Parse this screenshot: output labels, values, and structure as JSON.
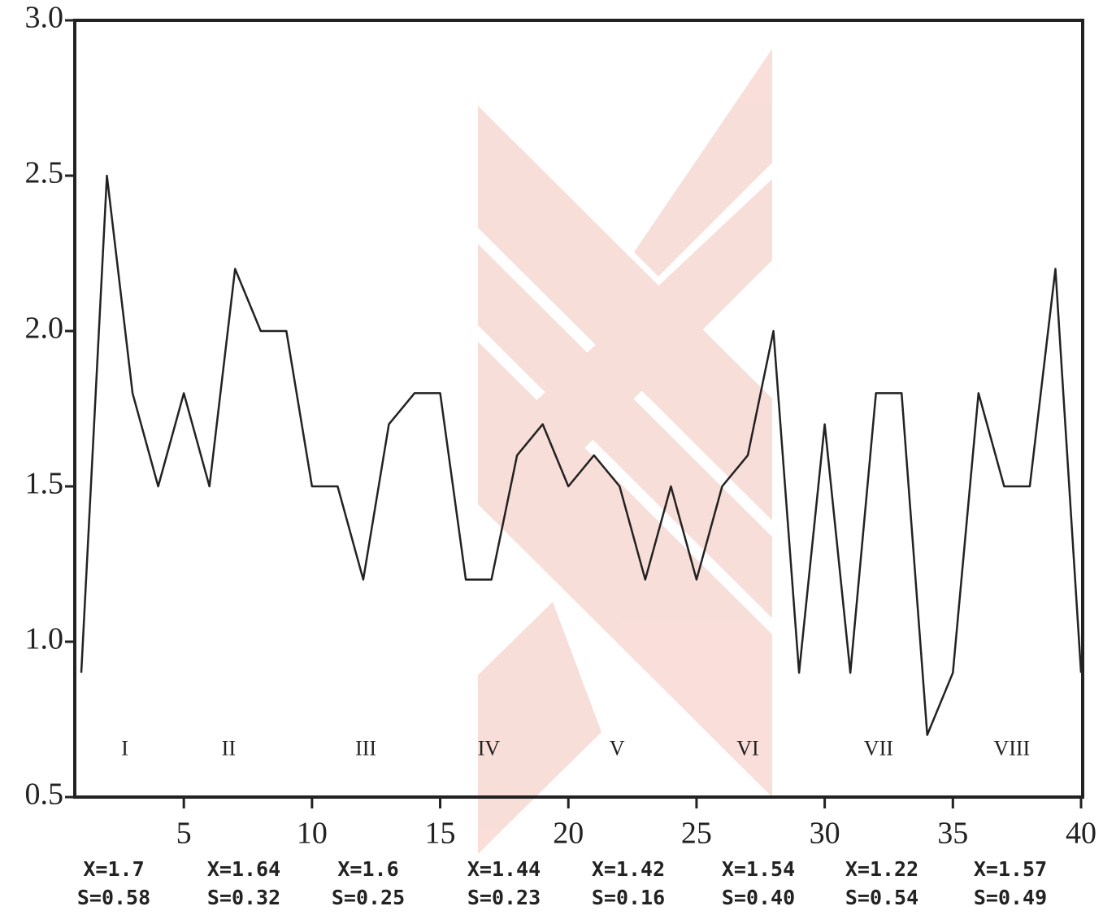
{
  "chart_data": {
    "type": "line",
    "x": [
      1,
      2,
      3,
      4,
      5,
      6,
      7,
      8,
      9,
      10,
      11,
      12,
      13,
      14,
      15,
      16,
      17,
      18,
      19,
      20,
      21,
      22,
      23,
      24,
      25,
      26,
      27,
      28,
      29,
      30,
      31,
      32,
      33,
      34,
      35,
      36,
      37,
      38,
      39,
      40
    ],
    "values": [
      0.9,
      2.5,
      1.8,
      1.5,
      1.8,
      1.5,
      2.2,
      2.0,
      2.0,
      1.5,
      1.5,
      1.2,
      1.7,
      1.8,
      1.8,
      1.2,
      1.2,
      1.6,
      1.7,
      1.5,
      1.6,
      1.5,
      1.2,
      1.5,
      1.2,
      1.5,
      1.6,
      2.0,
      0.9,
      1.7,
      0.9,
      1.8,
      1.8,
      0.7,
      0.9,
      1.8,
      1.5,
      1.5,
      2.2,
      0.9
    ],
    "color": "#222222",
    "xlim": [
      1,
      40
    ],
    "ylim": [
      0.5,
      3.0
    ],
    "xticks": [
      5,
      10,
      15,
      20,
      25,
      30,
      35,
      40
    ],
    "yticks": [
      0.5,
      {
        "value": 1.0,
        "label": "1.0"
      },
      1.5,
      {
        "value": 2.0,
        "label": "2.0"
      },
      2.5,
      {
        "value": 3.0,
        "label": "3.0"
      }
    ],
    "regions": [
      {
        "label": "I",
        "x": 2.7,
        "y": 0.65
      },
      {
        "label": "II",
        "x": 6.75,
        "y": 0.65
      },
      {
        "label": "III",
        "x": 12.1,
        "y": 0.65
      },
      {
        "label": "IV",
        "x": 16.9,
        "y": 0.65
      },
      {
        "label": "V",
        "x": 21.9,
        "y": 0.65
      },
      {
        "label": "VI",
        "x": 27,
        "y": 0.65
      },
      {
        "label": "VII",
        "x": 32.1,
        "y": 0.65
      },
      {
        "label": "VIII",
        "x": 37.3,
        "y": 0.65
      }
    ],
    "stats": [
      {
        "mean": "X=1.7",
        "sd": "S=0.58"
      },
      {
        "mean": "X=1.64",
        "sd": "S=0.32"
      },
      {
        "mean": "X=1.6",
        "sd": "S=0.25"
      },
      {
        "mean": "X=1.44",
        "sd": "S=0.23"
      },
      {
        "mean": "X=1.42",
        "sd": "S=0.16"
      },
      {
        "mean": "X=1.54",
        "sd": "S=0.40"
      },
      {
        "mean": "X=1.22",
        "sd": "S=0.54"
      },
      {
        "mean": "X=1.57",
        "sd": "S=0.49"
      }
    ]
  }
}
